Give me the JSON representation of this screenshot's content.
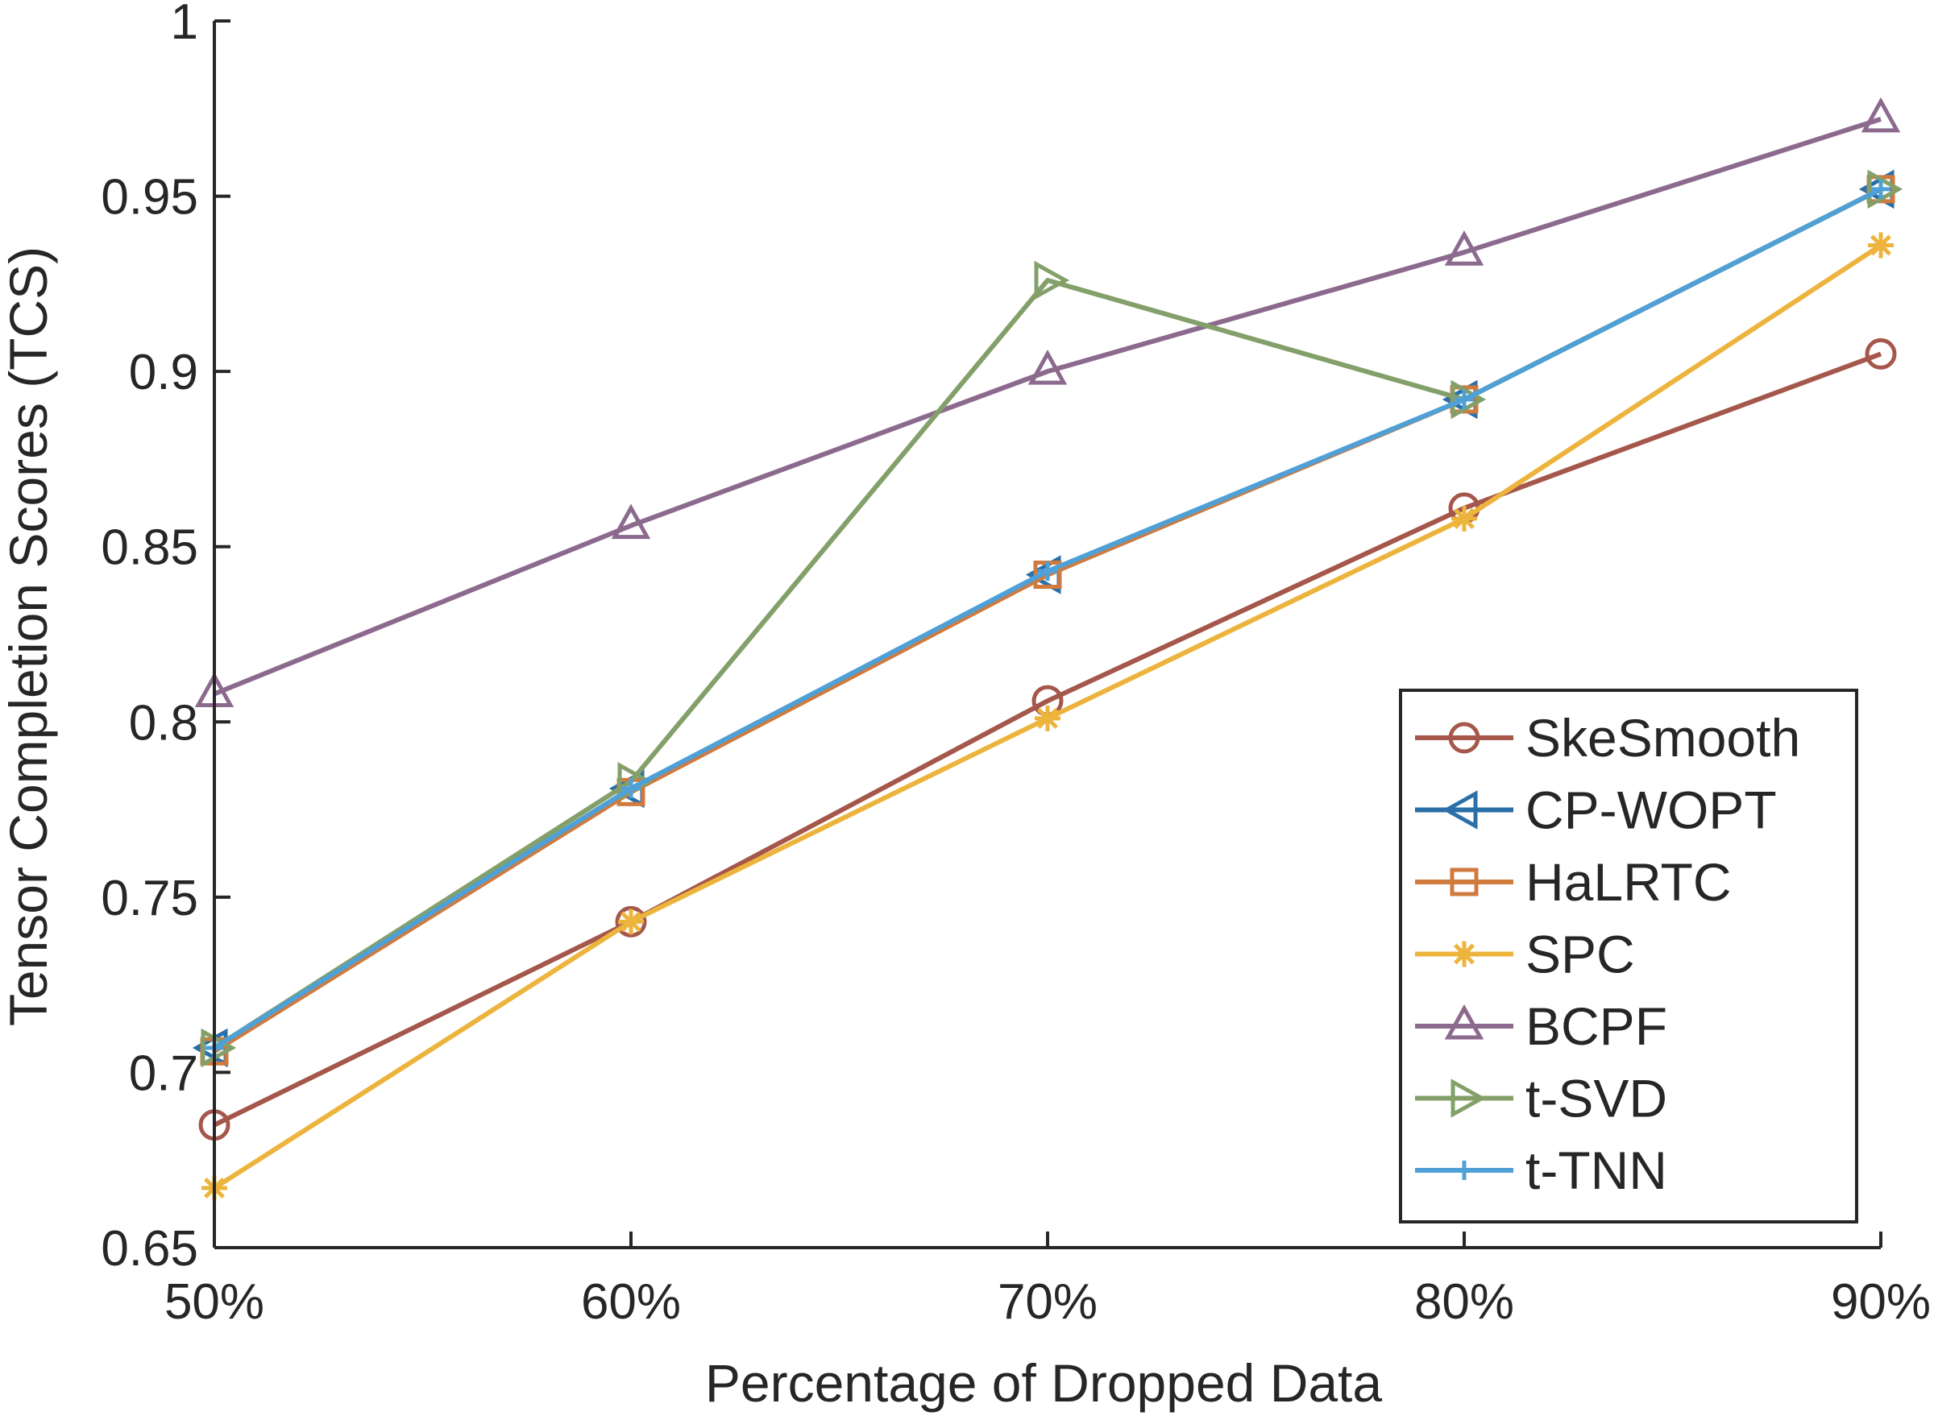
{
  "chart_data": {
    "type": "line",
    "xlabel": "Percentage of Dropped Data",
    "ylabel": "Tensor Completion Scores (TCS)",
    "categories": [
      "50%",
      "60%",
      "70%",
      "80%",
      "90%"
    ],
    "ylim": [
      0.65,
      1
    ],
    "yticks": [
      "0.65",
      "0.7",
      "0.75",
      "0.8",
      "0.85",
      "0.9",
      "0.95",
      "1"
    ],
    "ytick_values": [
      0.65,
      0.7,
      0.75,
      0.8,
      0.85,
      0.9,
      0.95,
      1.0
    ],
    "grid": false,
    "legend_position": "bottom-right",
    "series": [
      {
        "name": "SkeSmooth",
        "color": "#A5574B",
        "marker": "circle",
        "values": [
          0.685,
          0.743,
          0.806,
          0.861,
          0.905
        ]
      },
      {
        "name": "CP-WOPT",
        "color": "#2A6FA8",
        "marker": "triangle-left",
        "values": [
          0.707,
          0.781,
          0.842,
          0.892,
          0.952
        ]
      },
      {
        "name": "HaLRTC",
        "color": "#D07A3E",
        "marker": "square",
        "values": [
          0.706,
          0.78,
          0.842,
          0.892,
          0.952
        ]
      },
      {
        "name": "SPC",
        "color": "#EDB43D",
        "marker": "asterisk",
        "values": [
          0.667,
          0.743,
          0.801,
          0.858,
          0.936
        ]
      },
      {
        "name": "BCPF",
        "color": "#8C6A8E",
        "marker": "triangle-up",
        "values": [
          0.808,
          0.856,
          0.9,
          0.934,
          0.972
        ]
      },
      {
        "name": "t-SVD",
        "color": "#83A06A",
        "marker": "triangle-right",
        "values": [
          0.707,
          0.783,
          0.926,
          0.892,
          0.952
        ]
      },
      {
        "name": "t-TNN",
        "color": "#4FA0D6",
        "marker": "plus",
        "values": [
          0.707,
          0.781,
          0.843,
          0.892,
          0.952
        ]
      }
    ]
  }
}
